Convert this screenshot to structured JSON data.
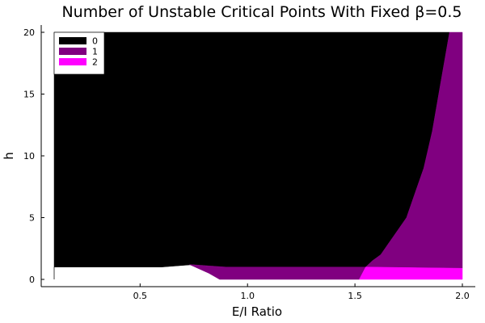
{
  "chart_data": {
    "type": "heatmap",
    "title": "Number of Unstable Critical Points With Fixed β=0.5",
    "xlabel": "E/I Ratio",
    "ylabel": "h",
    "xlim": [
      0.1,
      2.0
    ],
    "ylim": [
      0,
      20
    ],
    "xticks": [
      "0.5",
      "1.0",
      "1.5",
      "2.0"
    ],
    "yticks": [
      "0",
      "5",
      "10",
      "15",
      "20"
    ],
    "grid": false,
    "legend_position": "top-left",
    "legend": [
      {
        "label": "0",
        "color": "#000000"
      },
      {
        "label": "1",
        "color": "#800080"
      },
      {
        "label": "2",
        "color": "#ff00ff"
      }
    ],
    "regions": [
      {
        "value": 0,
        "color": "#000000",
        "boundary": [
          [
            0.1,
            0
          ],
          [
            0.1,
            20
          ],
          [
            1.94,
            20
          ],
          [
            1.9,
            16
          ],
          [
            1.86,
            12
          ],
          [
            1.82,
            9
          ],
          [
            1.78,
            7
          ],
          [
            1.74,
            5
          ],
          [
            1.7,
            4
          ],
          [
            1.66,
            3
          ],
          [
            1.62,
            2
          ],
          [
            1.58,
            1.5
          ],
          [
            1.55,
            1.0
          ],
          [
            0.9,
            1.0
          ],
          [
            0.75,
            1.2
          ],
          [
            0.6,
            1.0
          ],
          [
            0.1,
            1.0
          ]
        ]
      },
      {
        "value": 1,
        "color": "#800080",
        "boundary": [
          [
            0.73,
            1.2
          ],
          [
            0.9,
            1.0
          ],
          [
            1.55,
            1.0
          ],
          [
            1.58,
            1.5
          ],
          [
            1.62,
            2
          ],
          [
            1.66,
            3
          ],
          [
            1.7,
            4
          ],
          [
            1.74,
            5
          ],
          [
            1.78,
            7
          ],
          [
            1.82,
            9
          ],
          [
            1.86,
            12
          ],
          [
            1.9,
            16
          ],
          [
            1.94,
            20
          ],
          [
            2.0,
            20
          ],
          [
            2.0,
            0.9
          ],
          [
            1.55,
            1.0
          ],
          [
            1.52,
            0
          ],
          [
            0.87,
            0
          ],
          [
            0.82,
            0.5
          ]
        ]
      },
      {
        "value": 2,
        "color": "#ff00ff",
        "boundary": [
          [
            1.52,
            0
          ],
          [
            1.55,
            1.0
          ],
          [
            2.0,
            0.9
          ],
          [
            2.0,
            0
          ]
        ]
      }
    ]
  }
}
